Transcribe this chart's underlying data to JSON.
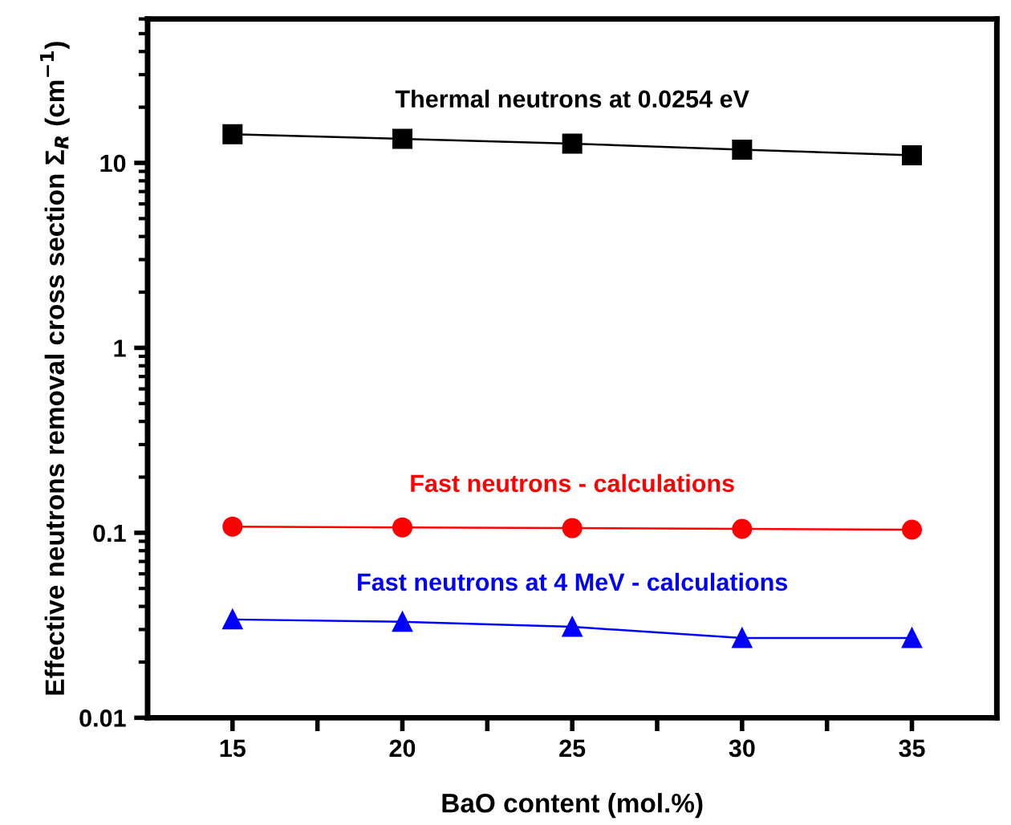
{
  "chart_data": {
    "type": "line",
    "xlabel": "BaO content (mol.%)",
    "ylabel": "Effective neutrons removal cross section Σ$_{R}$ (cm$^{−1}$)",
    "x": [
      15,
      20,
      25,
      30,
      35
    ],
    "series": [
      {
        "name": "Thermal neutrons at 0.0254 eV",
        "color": "#000000",
        "marker": "square",
        "values": [
          14.3,
          13.5,
          12.7,
          11.8,
          11.0
        ]
      },
      {
        "name": "Fast neutrons - calculations",
        "color": "#ff0000",
        "marker": "circle",
        "values": [
          0.108,
          0.107,
          0.106,
          0.105,
          0.104
        ]
      },
      {
        "name": "Fast neutrons at 4 MeV - calculations",
        "color": "#0000ff",
        "marker": "triangle",
        "values": [
          0.034,
          0.033,
          0.031,
          0.027,
          0.027
        ]
      }
    ],
    "log": "y",
    "xlim": [
      12.5,
      37.5
    ],
    "ylim": [
      0.01,
      60
    ],
    "xticks": [
      15,
      {
        "value": 17.5,
        "label": null
      },
      20,
      {
        "value": 22.5,
        "label": null
      },
      25,
      {
        "value": 27.5,
        "label": null
      },
      30,
      {
        "value": 32.5,
        "label": null
      },
      35
    ],
    "yticks": [
      {
        "value": 0.01,
        "label": "0.01"
      },
      {
        "value": 0.1,
        "label": "0.1"
      },
      1,
      10
    ],
    "grid": false,
    "line_style": "solid"
  }
}
